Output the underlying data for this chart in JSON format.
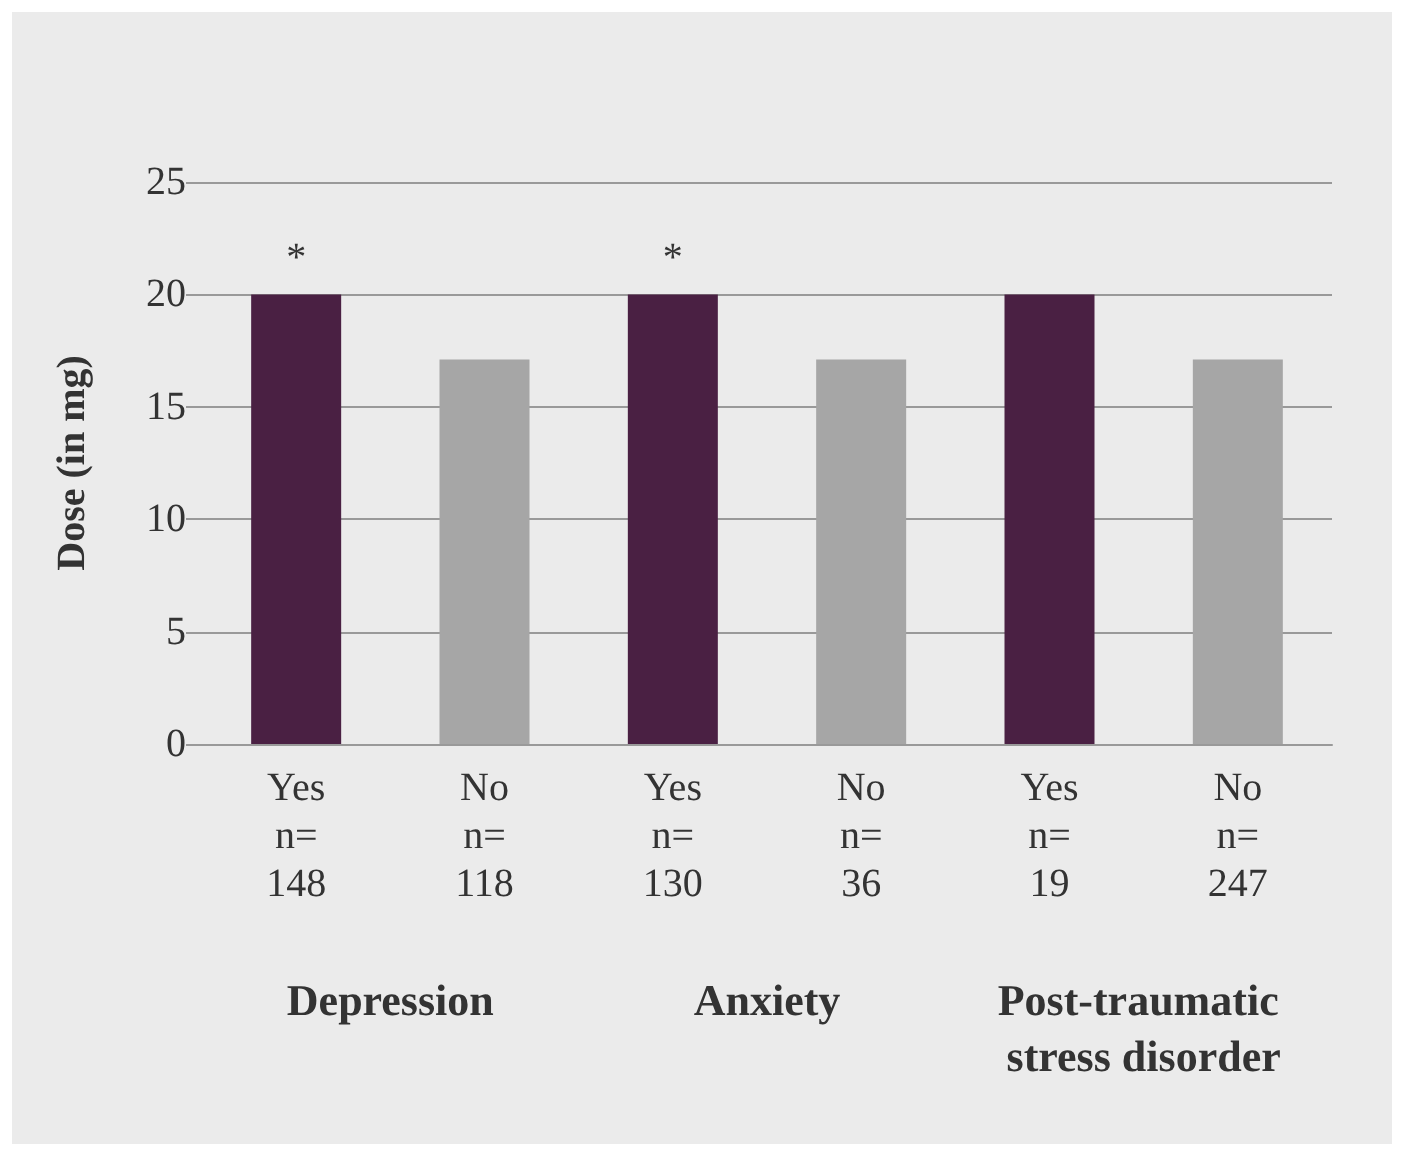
{
  "chart_data": {
    "type": "bar",
    "ylabel": "Dose (in mg)",
    "categories": [
      "Yes\nn=\n148",
      "No\nn=\n118",
      "Yes\nn=\n130",
      "No\nn=\n36",
      "Yes\nn=\n19",
      "No\nn=\n247"
    ],
    "values": [
      20,
      17.1,
      20,
      17.1,
      20,
      17.1
    ],
    "colors": [
      "#4a2043",
      "#a6a6a6",
      "#4a2043",
      "#a6a6a6",
      "#4a2043",
      "#a6a6a6"
    ],
    "ylim": [
      0,
      25
    ],
    "yticks": [
      0,
      5,
      10,
      15,
      20,
      25
    ],
    "grid": "y",
    "annotations": [
      {
        "text": "*",
        "x": "Yes\nn=\n148",
        "y": 20
      },
      {
        "text": "*",
        "x": "Yes\nn=\n130",
        "y": 20
      },
      "Depression",
      "Anxiety",
      "Post-traumatic stress disorder"
    ]
  }
}
